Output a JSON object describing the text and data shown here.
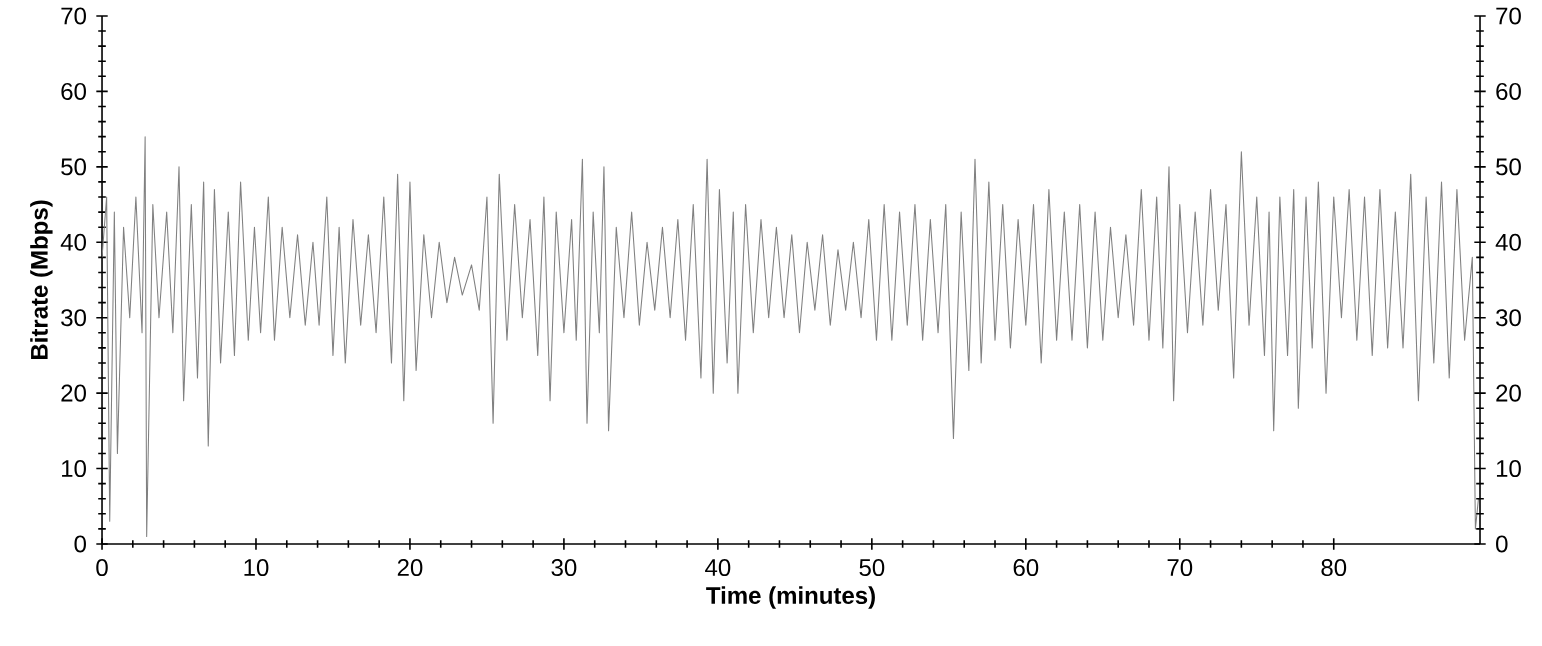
{
  "chart_data": {
    "type": "line",
    "xlabel": "Time (minutes)",
    "ylabel": "Bitrate (Mbps)",
    "xlim": [
      0,
      89.5
    ],
    "xticks": [
      0,
      10,
      20,
      30,
      40,
      50,
      60,
      70,
      80
    ],
    "ylim": [
      0,
      70
    ],
    "yticks": [
      0,
      10,
      20,
      30,
      40,
      50,
      60,
      70
    ],
    "y2lim": [
      0,
      70
    ],
    "y2ticks": [
      0,
      10,
      20,
      30,
      40,
      50,
      60,
      70
    ],
    "x": [
      0,
      0.3,
      0.5,
      0.8,
      1.0,
      1.4,
      1.8,
      2.2,
      2.6,
      2.8,
      2.9,
      3.3,
      3.7,
      4.2,
      4.6,
      5.0,
      5.3,
      5.8,
      6.2,
      6.6,
      6.9,
      7.3,
      7.7,
      8.2,
      8.6,
      9.0,
      9.5,
      9.9,
      10.3,
      10.8,
      11.2,
      11.7,
      12.2,
      12.7,
      13.2,
      13.7,
      14.1,
      14.6,
      15.0,
      15.4,
      15.8,
      16.3,
      16.8,
      17.3,
      17.8,
      18.3,
      18.8,
      19.2,
      19.6,
      20.0,
      20.4,
      20.9,
      21.4,
      21.9,
      22.4,
      22.9,
      23.4,
      24.0,
      24.5,
      25.0,
      25.4,
      25.8,
      26.3,
      26.8,
      27.3,
      27.8,
      28.3,
      28.7,
      29.1,
      29.5,
      30.0,
      30.5,
      30.8,
      31.2,
      31.5,
      31.9,
      32.3,
      32.6,
      32.9,
      33.4,
      33.9,
      34.4,
      34.9,
      35.4,
      35.9,
      36.4,
      36.9,
      37.4,
      37.9,
      38.4,
      38.9,
      39.3,
      39.7,
      40.1,
      40.6,
      41.0,
      41.3,
      41.8,
      42.3,
      42.8,
      43.3,
      43.8,
      44.3,
      44.8,
      45.3,
      45.8,
      46.3,
      46.8,
      47.3,
      47.8,
      48.3,
      48.8,
      49.3,
      49.8,
      50.3,
      50.8,
      51.3,
      51.8,
      52.3,
      52.8,
      53.3,
      53.8,
      54.3,
      54.8,
      55.3,
      55.8,
      56.3,
      56.7,
      57.1,
      57.6,
      58.0,
      58.5,
      59.0,
      59.5,
      60.0,
      60.5,
      61.0,
      61.5,
      62.0,
      62.5,
      63.0,
      63.5,
      64.0,
      64.5,
      65.0,
      65.5,
      66.0,
      66.5,
      67.0,
      67.5,
      68.0,
      68.5,
      68.9,
      69.3,
      69.6,
      70.0,
      70.5,
      71.0,
      71.5,
      72.0,
      72.5,
      73.0,
      73.5,
      74.0,
      74.5,
      75.0,
      75.5,
      75.8,
      76.1,
      76.5,
      77.0,
      77.4,
      77.7,
      78.2,
      78.6,
      79.0,
      79.5,
      80.0,
      80.5,
      81.0,
      81.5,
      82.0,
      82.5,
      83.0,
      83.5,
      84.0,
      84.5,
      85.0,
      85.5,
      86.0,
      86.5,
      87.0,
      87.5,
      88.0,
      88.5,
      89.0,
      89.2,
      89.4
    ],
    "series": [
      {
        "color": "#808080",
        "values": [
          38,
          46,
          3,
          44,
          12,
          42,
          30,
          46,
          28,
          54,
          1,
          45,
          30,
          44,
          28,
          50,
          19,
          45,
          22,
          48,
          13,
          47,
          24,
          44,
          25,
          48,
          27,
          42,
          28,
          46,
          27,
          42,
          30,
          41,
          29,
          40,
          29,
          46,
          25,
          42,
          24,
          43,
          29,
          41,
          28,
          46,
          24,
          49,
          19,
          48,
          23,
          41,
          30,
          40,
          32,
          38,
          33,
          37,
          31,
          46,
          16,
          49,
          27,
          45,
          30,
          43,
          25,
          46,
          19,
          44,
          28,
          43,
          27,
          51,
          16,
          44,
          28,
          50,
          15,
          42,
          30,
          44,
          29,
          40,
          31,
          42,
          30,
          43,
          27,
          45,
          22,
          51,
          20,
          47,
          24,
          44,
          20,
          45,
          28,
          43,
          30,
          42,
          30,
          41,
          28,
          40,
          31,
          41,
          29,
          39,
          31,
          40,
          30,
          43,
          27,
          45,
          27,
          44,
          29,
          45,
          27,
          43,
          28,
          45,
          14,
          44,
          23,
          51,
          24,
          48,
          27,
          45,
          26,
          43,
          29,
          45,
          24,
          47,
          27,
          44,
          27,
          45,
          26,
          44,
          27,
          42,
          30,
          41,
          29,
          47,
          27,
          46,
          26,
          50,
          19,
          45,
          28,
          44,
          29,
          47,
          31,
          45,
          22,
          52,
          29,
          46,
          25,
          44,
          15,
          46,
          25,
          47,
          18,
          46,
          26,
          48,
          20,
          46,
          30,
          47,
          27,
          46,
          25,
          47,
          26,
          44,
          26,
          49,
          19,
          46,
          24,
          48,
          22,
          47,
          27,
          38,
          2,
          6
        ]
      }
    ]
  }
}
